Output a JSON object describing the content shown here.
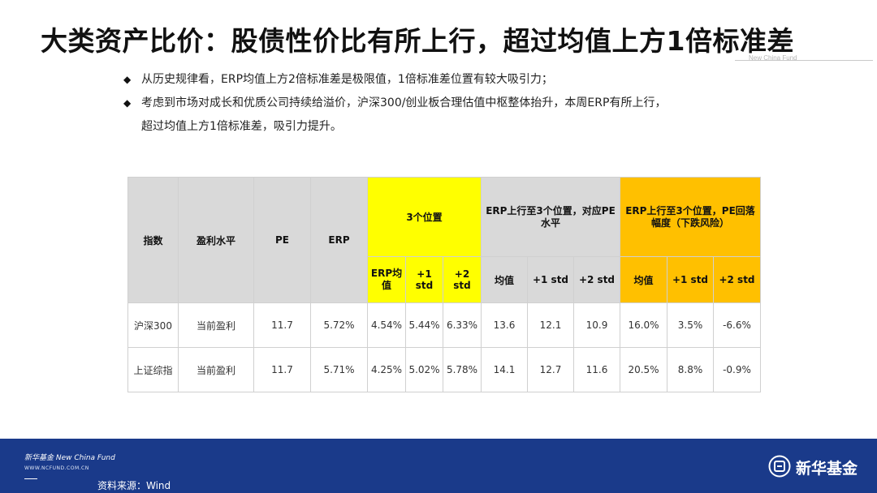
{
  "title": "大类资产比价：股债性价比有所上行，超过均值上方1倍标准差",
  "brand_en": "New China Fund",
  "bullets": {
    "line1": "从历史规律看，ERP均值上方2倍标准差是极限值，1倍标准差位置有较大吸引力；",
    "line2": "考虑到市场对成长和优质公司持续给溢价，沪深300/创业板合理估值中枢整体抬升，本周ERP有所上行，",
    "line2_cont": "超过均值上方1倍标准差，吸引力提升。",
    "glyph": "◆"
  },
  "table": {
    "headers": {
      "index": "指数",
      "earnings": "盈利水平",
      "pe": "PE",
      "erp": "ERP",
      "group1": "3个位置",
      "group2": "ERP上行至3个位置，对应PE水平",
      "group3": "ERP上行至3个位置，PE回落幅度（下跌风险）",
      "g1_sub": [
        "ERP均值",
        "+1 std",
        "+2 std"
      ],
      "g2_sub": [
        "均值",
        "+1 std",
        "+2 std"
      ],
      "g3_sub": [
        "均值",
        "+1 std",
        "+2 std"
      ]
    },
    "rows": [
      {
        "index": "沪深300",
        "earnings": "当前盈利",
        "pe": "11.7",
        "erp": "5.72%",
        "g1": [
          "4.54%",
          "5.44%",
          "6.33%"
        ],
        "g2": [
          "13.6",
          "12.1",
          "10.9"
        ],
        "g3": [
          "16.0%",
          "3.5%",
          "-6.6%"
        ]
      },
      {
        "index": "上证综指",
        "earnings": "当前盈利",
        "pe": "11.7",
        "erp": "5.71%",
        "g1": [
          "4.25%",
          "5.02%",
          "5.78%"
        ],
        "g2": [
          "14.1",
          "12.7",
          "11.6"
        ],
        "g3": [
          "20.5%",
          "8.8%",
          "-0.9%"
        ]
      }
    ],
    "colors": {
      "yellow": "#ffff00",
      "orange": "#ffc000",
      "grey": "#d9d9d9"
    }
  },
  "footer": {
    "brand": "新华基金 New China Fund",
    "url": "WWW.NCFUND.COM.CN",
    "source": "资料来源：Wind",
    "logo_text": "新华基金",
    "bg_color": "#1a3a8a"
  }
}
